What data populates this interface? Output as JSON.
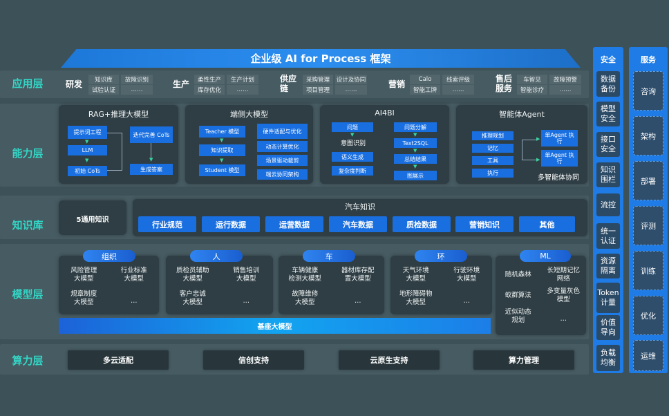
{
  "title": "企业级 AI for Process 框架",
  "layers": [
    "应用层",
    "能力层",
    "知识库",
    "模型层",
    "算力层"
  ],
  "application": [
    {
      "name": "研发",
      "items": [
        "知识库",
        "故障识别",
        "试验认证",
        "……"
      ]
    },
    {
      "name": "生产",
      "items": [
        "柔性生产",
        "生产计划",
        "库存优化",
        "……"
      ]
    },
    {
      "name": "供应链",
      "items": [
        "采购管理",
        "设计及协同",
        "项目管理",
        "……"
      ]
    },
    {
      "name": "营销",
      "items": [
        "Calo",
        "线索评级",
        "智能工牌",
        "……"
      ]
    },
    {
      "name": "售后服务",
      "items": [
        "车智见",
        "故障预警",
        "智能诊疗",
        "……"
      ]
    }
  ],
  "capability": {
    "rag": {
      "title": "RAG+推理大模型",
      "boxes": [
        "提示词工程",
        "LLM",
        "初始 CoTs",
        "迭代完善 CoTs",
        "生成答案"
      ]
    },
    "edge": {
      "title": "端侧大模型",
      "boxes": [
        "Teacher 模型",
        "知识提取",
        "Student 模型",
        "硬件适配与优化",
        "动态计算优化",
        "场景驱动裁剪",
        "端云协同架构"
      ]
    },
    "ai4bi": {
      "title": "AI4BI",
      "boxes": [
        "问题",
        "语义生成",
        "复杂度判断",
        "问题分解",
        "Text2SQL",
        "总结结果",
        "图展示"
      ],
      "text": "意图识别"
    },
    "agent": {
      "title": "智能体Agent",
      "boxes": [
        "推理规划",
        "记忆",
        "工具",
        "执行",
        "单Agent 执行",
        "单Agent 执行"
      ],
      "text": "多智能体协同"
    }
  },
  "knowledge": {
    "general": "5通用知识",
    "auto_title": "汽车知识",
    "items": [
      "行业规范",
      "运行数据",
      "运营数据",
      "汽车数据",
      "质检数据",
      "营销知识",
      "其他"
    ]
  },
  "models": [
    {
      "name": "组织",
      "items": [
        "风险管理\n大模型",
        "行业标准\n大模型",
        "规章制度\n大模型",
        "…"
      ]
    },
    {
      "name": "人",
      "items": [
        "质检员辅助\n大模型",
        "销售培训\n大模型",
        "客户忠诚\n大模型",
        "…"
      ]
    },
    {
      "name": "车",
      "items": [
        "车辆健康\n检测大模型",
        "器材库存配\n置大模型",
        "故障维修\n大模型",
        "…"
      ]
    },
    {
      "name": "环",
      "items": [
        "天气环境\n大模型",
        "行驶环境\n大模型",
        "地形障碍物\n大模型",
        "…"
      ]
    },
    {
      "name": "ML",
      "items": [
        "随机森林",
        "长短期记忆\n网络",
        "蚁群算法",
        "多变量灰色\n模型",
        "近似动态\n规划",
        "…"
      ]
    }
  ],
  "base_model": "基座大模型",
  "compute": [
    "多云适配",
    "信创支持",
    "云原生支持",
    "算力管理"
  ],
  "security": {
    "title": "安全",
    "items": [
      "数据\n备份",
      "模型\n安全",
      "接口\n安全",
      "知识\n围栏",
      "流控",
      "统一\n认证",
      "资源\n隔离",
      "Token\n计量",
      "价值\n导向",
      "负载\n均衡"
    ]
  },
  "service": {
    "title": "服务",
    "items": [
      "咨询",
      "架构",
      "部署",
      "评测",
      "训练",
      "优化",
      "运维"
    ]
  },
  "colors": {
    "accent": "#33d6c6",
    "box_blue": "#1a6fe0",
    "column_blue": "#1f7be6",
    "background": "#3d5158"
  }
}
